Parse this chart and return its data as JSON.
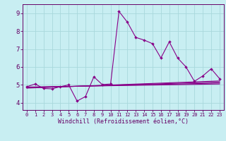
{
  "xlabel": "Windchill (Refroidissement éolien,°C)",
  "bg_color": "#c8eef2",
  "grid_color": "#a8d8dc",
  "line_color": "#880088",
  "spine_color": "#660066",
  "xlim_min": -0.5,
  "xlim_max": 23.5,
  "ylim_min": 3.6,
  "ylim_max": 9.5,
  "xticks": [
    0,
    1,
    2,
    3,
    4,
    5,
    6,
    7,
    8,
    9,
    10,
    11,
    12,
    13,
    14,
    15,
    16,
    17,
    18,
    19,
    20,
    21,
    22,
    23
  ],
  "yticks": [
    4,
    5,
    6,
    7,
    8,
    9
  ],
  "main_x": [
    0,
    1,
    2,
    3,
    4,
    5,
    6,
    7,
    8,
    9,
    10,
    11,
    12,
    13,
    14,
    15,
    16,
    17,
    18,
    19,
    20,
    21,
    22,
    23
  ],
  "main_y": [
    4.9,
    5.05,
    4.8,
    4.78,
    4.9,
    5.0,
    4.1,
    4.35,
    5.45,
    5.02,
    5.05,
    9.1,
    8.5,
    7.65,
    7.5,
    7.3,
    6.5,
    7.4,
    6.5,
    6.0,
    5.2,
    5.5,
    5.9,
    5.35
  ],
  "flat_lines": [
    [
      4.88,
      5.05
    ],
    [
      4.86,
      5.1
    ],
    [
      4.84,
      5.16
    ],
    [
      4.82,
      5.22
    ]
  ]
}
